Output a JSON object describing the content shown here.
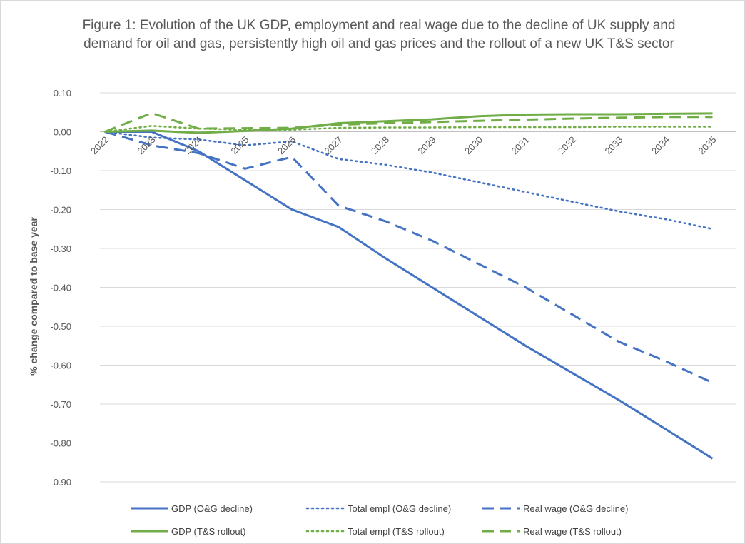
{
  "chart_data": {
    "type": "line",
    "title": "Figure 1: Evolution of the UK GDP, employment and real wage due to the decline of UK supply and demand for oil and gas, persistently high oil and gas prices and the rollout of a new UK T&S sector",
    "xlabel": "",
    "ylabel": "% change compared to base year",
    "ylim": [
      -0.9,
      0.1
    ],
    "yticks": [
      "0.10",
      "0.00",
      "-0.10",
      "-0.20",
      "-0.30",
      "-0.40",
      "-0.50",
      "-0.60",
      "-0.70",
      "-0.80",
      "-0.90"
    ],
    "ytick_values": [
      0.1,
      0.0,
      -0.1,
      -0.2,
      -0.3,
      -0.4,
      -0.5,
      -0.6,
      -0.7,
      -0.8,
      -0.9
    ],
    "categories": [
      "2022",
      "2023",
      "2024",
      "2025",
      "2026",
      "2027",
      "2028",
      "2029",
      "2030",
      "2031",
      "2032",
      "2033",
      "2034",
      "2035"
    ],
    "grid": true,
    "legend_position": "bottom",
    "series": [
      {
        "name": "GDP (O&G decline)",
        "color": "#4472C4",
        "style": "solid",
        "values": [
          0.0,
          0.0,
          -0.05,
          -0.125,
          -0.2,
          -0.245,
          -0.325,
          -0.4,
          -0.475,
          -0.55,
          -0.62,
          -0.69,
          -0.765,
          -0.84
        ]
      },
      {
        "name": "Total empl (O&G decline)",
        "color": "#4472C4",
        "style": "dotted",
        "values": [
          0.0,
          -0.015,
          -0.02,
          -0.035,
          -0.025,
          -0.07,
          -0.085,
          -0.105,
          -0.13,
          -0.155,
          -0.18,
          -0.205,
          -0.225,
          -0.25
        ]
      },
      {
        "name": "Real wage (O&G decline)",
        "color": "#4472C4",
        "style": "dashed",
        "values": [
          0.0,
          -0.035,
          -0.055,
          -0.095,
          -0.065,
          -0.19,
          -0.23,
          -0.28,
          -0.34,
          -0.4,
          -0.47,
          -0.54,
          -0.59,
          -0.645
        ]
      },
      {
        "name": "GDP (T&S rollout)",
        "color": "#70AD47",
        "style": "solid",
        "values": [
          0.0,
          0.003,
          -0.003,
          0.002,
          0.008,
          0.022,
          0.027,
          0.032,
          0.04,
          0.044,
          0.045,
          0.045,
          0.046,
          0.047
        ]
      },
      {
        "name": "Total empl (T&S rollout)",
        "color": "#70AD47",
        "style": "dotted",
        "values": [
          0.0,
          0.015,
          0.008,
          0.005,
          0.005,
          0.01,
          0.011,
          0.011,
          0.012,
          0.012,
          0.012,
          0.013,
          0.013,
          0.013
        ]
      },
      {
        "name": "Real wage (T&S rollout)",
        "color": "#70AD47",
        "style": "dashed",
        "values": [
          0.0,
          0.048,
          0.008,
          0.009,
          0.01,
          0.018,
          0.022,
          0.025,
          0.028,
          0.031,
          0.034,
          0.036,
          0.038,
          0.038
        ]
      }
    ]
  }
}
